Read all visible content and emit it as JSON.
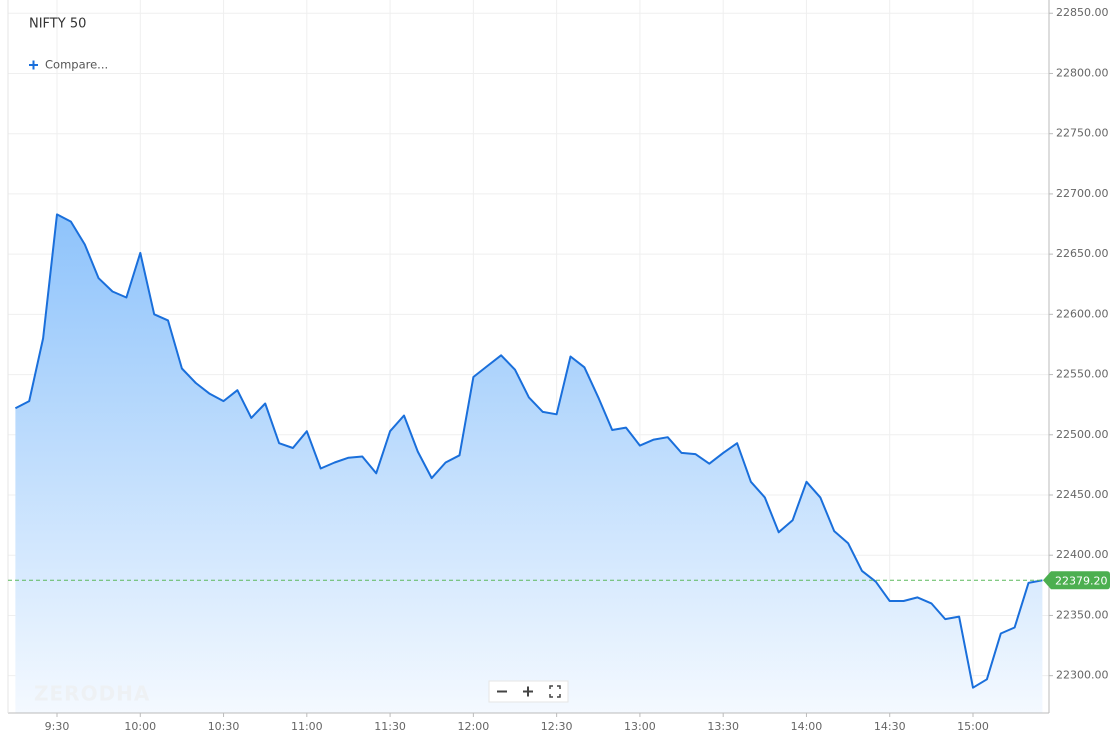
{
  "chart_data": {
    "type": "area",
    "title": "NIFTY 50",
    "compare_label": "Compare...",
    "watermark": "ZERODHA",
    "color": "#1a6fdb",
    "grid": true,
    "x": [
      "9:15",
      "9:20",
      "9:25",
      "9:30",
      "9:35",
      "9:40",
      "9:45",
      "9:50",
      "9:55",
      "10:00",
      "10:05",
      "10:10",
      "10:15",
      "10:20",
      "10:25",
      "10:30",
      "10:35",
      "10:40",
      "10:45",
      "10:50",
      "10:55",
      "11:00",
      "11:05",
      "11:10",
      "11:15",
      "11:20",
      "11:25",
      "11:30",
      "11:35",
      "11:40",
      "11:45",
      "11:50",
      "11:55",
      "12:00",
      "12:05",
      "12:10",
      "12:15",
      "12:20",
      "12:25",
      "12:30",
      "12:35",
      "12:40",
      "12:45",
      "12:50",
      "12:55",
      "13:00",
      "13:05",
      "13:10",
      "13:15",
      "13:20",
      "13:25",
      "13:30",
      "13:35",
      "13:40",
      "13:45",
      "13:50",
      "13:55",
      "14:00",
      "14:05",
      "14:10",
      "14:15",
      "14:20",
      "14:25",
      "14:30",
      "14:35",
      "14:40",
      "14:45",
      "14:50",
      "14:55",
      "15:00",
      "15:05",
      "15:10",
      "15:15",
      "15:20",
      "15:25"
    ],
    "values": [
      22522,
      22528,
      22580,
      22683,
      22677,
      22658,
      22630,
      22619,
      22614,
      22651,
      22600,
      22595,
      22555,
      22543,
      22534,
      22528,
      22537,
      22514,
      22526,
      22493,
      22489,
      22503,
      22472,
      22477,
      22481,
      22482,
      22468,
      22503,
      22516,
      22486,
      22464,
      22477,
      22483,
      22548,
      22557,
      22566,
      22554,
      22531,
      22519,
      22517,
      22565,
      22556,
      22531,
      22504,
      22506,
      22491,
      22496,
      22498,
      22485,
      22484,
      22476,
      22485,
      22493,
      22461,
      22448,
      22419,
      22429,
      22461,
      22448,
      22420,
      22410,
      22387,
      22378,
      22362,
      22362,
      22365,
      22360,
      22347,
      22349,
      22290,
      22297,
      22335,
      22340,
      22377,
      22379.2
    ],
    "xticks": [
      "9:30",
      "10:00",
      "10:30",
      "11:00",
      "11:30",
      "12:00",
      "12:30",
      "13:00",
      "13:30",
      "14:00",
      "14:30",
      "15:00"
    ],
    "ylim": [
      22269,
      22861
    ],
    "yticks": [
      {
        "value": 22300,
        "label": "22300.00"
      },
      {
        "value": 22350,
        "label": "22350.00"
      },
      {
        "value": 22400,
        "label": "22400.00"
      },
      {
        "value": 22450,
        "label": "22450.00"
      },
      {
        "value": 22500,
        "label": "22500.00"
      },
      {
        "value": 22550,
        "label": "22550.00"
      },
      {
        "value": 22600,
        "label": "22600.00"
      },
      {
        "value": 22650,
        "label": "22650.00"
      },
      {
        "value": 22700,
        "label": "22700.00"
      },
      {
        "value": 22750,
        "label": "22750.00"
      },
      {
        "value": 22800,
        "label": "22800.00"
      },
      {
        "value": 22850,
        "label": "22850.00"
      }
    ],
    "last_price": {
      "value": 22379.2,
      "label": "22379.20"
    }
  }
}
